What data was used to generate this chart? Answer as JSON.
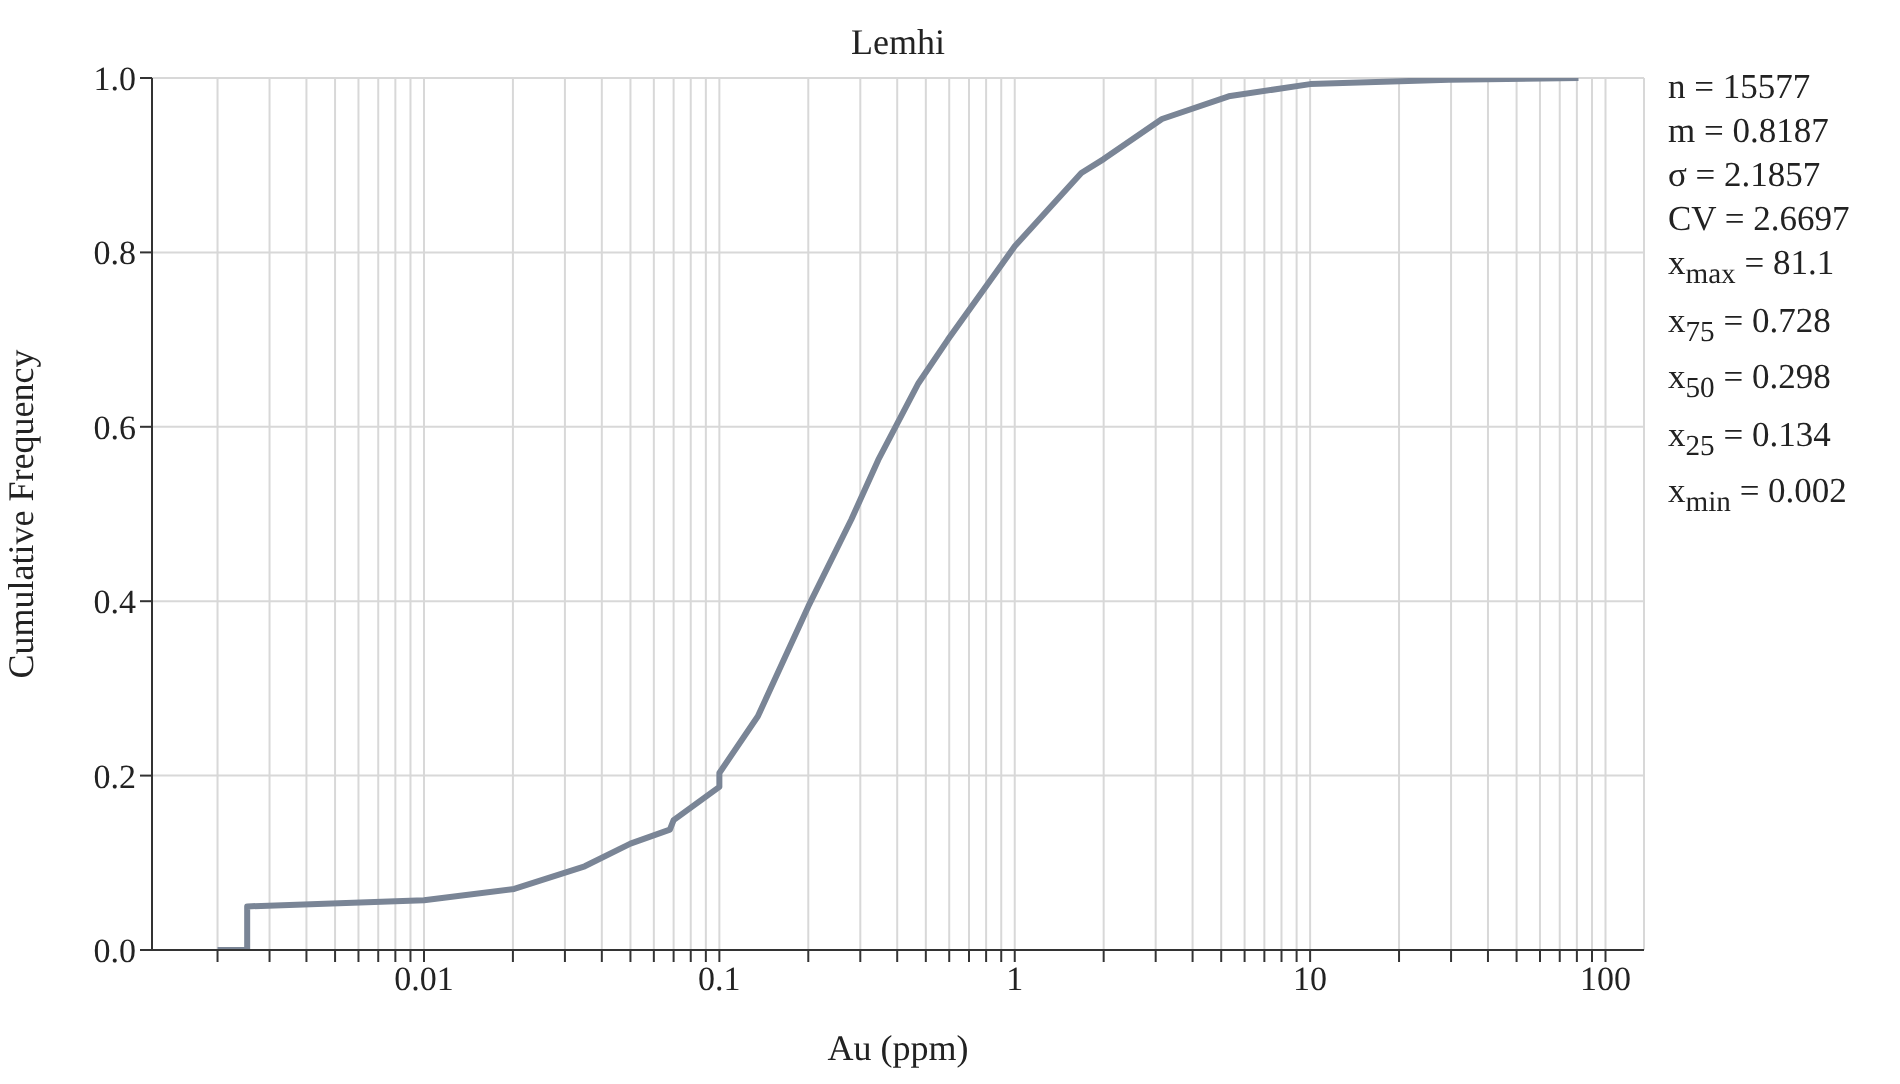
{
  "chart_data": {
    "type": "line",
    "title": "Lemhi",
    "xlabel": "Au (ppm)",
    "ylabel": "Cumulative Frequency",
    "log": "x",
    "grid": true,
    "marker": "none",
    "line_style": "solid",
    "xlim": [
      0.0012,
      135
    ],
    "ylim": [
      0,
      1
    ],
    "xticks": [
      {
        "value": 0.002,
        "label": null
      },
      {
        "value": 0.003,
        "label": null
      },
      {
        "value": 0.004,
        "label": null
      },
      {
        "value": 0.005,
        "label": null
      },
      {
        "value": 0.006,
        "label": null
      },
      {
        "value": 0.007,
        "label": null
      },
      {
        "value": 0.008,
        "label": null
      },
      {
        "value": 0.009,
        "label": null
      },
      0.01,
      {
        "value": 0.02,
        "label": null
      },
      {
        "value": 0.03,
        "label": null
      },
      {
        "value": 0.04,
        "label": null
      },
      {
        "value": 0.05,
        "label": null
      },
      {
        "value": 0.06,
        "label": null
      },
      {
        "value": 0.07,
        "label": null
      },
      {
        "value": 0.08,
        "label": null
      },
      {
        "value": 0.09,
        "label": null
      },
      0.1,
      {
        "value": 0.2,
        "label": null
      },
      {
        "value": 0.3,
        "label": null
      },
      {
        "value": 0.4,
        "label": null
      },
      {
        "value": 0.5,
        "label": null
      },
      {
        "value": 0.6,
        "label": null
      },
      {
        "value": 0.7,
        "label": null
      },
      {
        "value": 0.8,
        "label": null
      },
      {
        "value": 0.9,
        "label": null
      },
      1,
      {
        "value": 2,
        "label": null
      },
      {
        "value": 3,
        "label": null
      },
      {
        "value": 4,
        "label": null
      },
      {
        "value": 5,
        "label": null
      },
      {
        "value": 6,
        "label": null
      },
      {
        "value": 7,
        "label": null
      },
      {
        "value": 8,
        "label": null
      },
      {
        "value": 9,
        "label": null
      },
      10,
      {
        "value": 20,
        "label": null
      },
      {
        "value": 30,
        "label": null
      },
      {
        "value": 40,
        "label": null
      },
      {
        "value": 50,
        "label": null
      },
      {
        "value": 60,
        "label": null
      },
      {
        "value": 70,
        "label": null
      },
      {
        "value": 80,
        "label": null
      },
      {
        "value": 90,
        "label": null
      },
      100
    ],
    "yticks": [
      {
        "value": 0,
        "label": "0.0"
      },
      {
        "value": 0.2,
        "label": "0.2"
      },
      {
        "value": 0.4,
        "label": "0.4"
      },
      {
        "value": 0.6,
        "label": "0.6"
      },
      {
        "value": 0.8,
        "label": "0.8"
      },
      {
        "value": 1,
        "label": "1.0"
      }
    ],
    "series": [
      {
        "color": "#7a8596",
        "x": [
          0.002,
          0.00252,
          0.00252,
          0.01,
          0.0202,
          0.035,
          0.05,
          0.068,
          0.07,
          0.1,
          0.1,
          0.135,
          0.2,
          0.28,
          0.345,
          0.472,
          0.594,
          1,
          1.68,
          2,
          3.15,
          5.3,
          10,
          29.5,
          81
        ],
        "values": [
          0,
          0,
          0.05,
          0.057,
          0.07,
          0.096,
          0.122,
          0.138,
          0.149,
          0.187,
          0.203,
          0.268,
          0.394,
          0.494,
          0.562,
          0.65,
          0.7,
          0.807,
          0.891,
          0.907,
          0.953,
          0.979,
          0.993,
          0.998,
          1
        ]
      }
    ],
    "annotations": [
      "n = 15577",
      "m = 0.8187",
      "σ = 2.1857",
      "CV = 2.6697",
      "x$_{max}$ = 81.1",
      "x$_{75}$ = 0.728",
      "x$_{50}$ = 0.298",
      "x$_{25}$ = 0.134",
      "x$_{min}$ = 0.002"
    ]
  }
}
